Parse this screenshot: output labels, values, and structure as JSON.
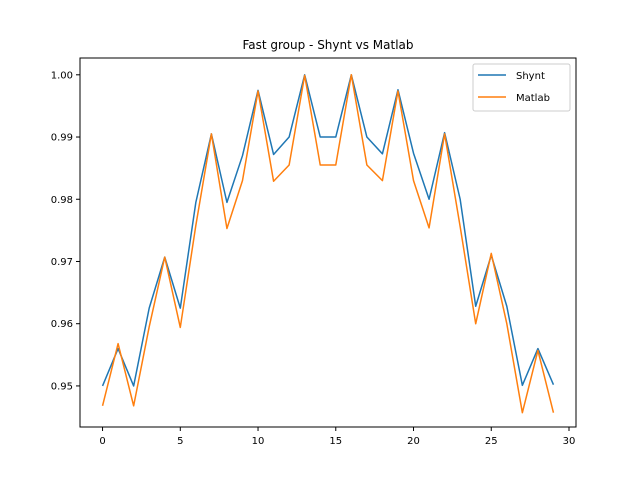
{
  "chart_data": {
    "type": "line",
    "title": "Fast group - Shynt vs Matlab",
    "xlabel": "",
    "ylabel": "",
    "xlim": [
      -1.45,
      30.45
    ],
    "ylim": [
      0.9434,
      1.0027
    ],
    "xticks": [
      0,
      5,
      10,
      15,
      20,
      25,
      30
    ],
    "yticks": [
      0.95,
      0.96,
      0.97,
      0.98,
      0.99,
      1.0
    ],
    "ytick_labels": [
      "0.95",
      "0.96",
      "0.97",
      "0.98",
      "0.99",
      "1.00"
    ],
    "grid": false,
    "legend": "top-right",
    "x": [
      0,
      1,
      2,
      3,
      4,
      5,
      6,
      7,
      8,
      9,
      10,
      11,
      12,
      13,
      14,
      15,
      16,
      17,
      18,
      19,
      20,
      21,
      22,
      23,
      24,
      25,
      26,
      27,
      28,
      29
    ],
    "series": [
      {
        "name": "Shynt",
        "color": "#1f77b4",
        "values": [
          0.95,
          0.956,
          0.95,
          0.9625,
          0.9707,
          0.9625,
          0.9795,
          0.9905,
          0.9795,
          0.987,
          0.9975,
          0.9872,
          0.99,
          1.0,
          0.99,
          0.99,
          1.0,
          0.99,
          0.9873,
          0.9976,
          0.9874,
          0.98,
          0.9907,
          0.98,
          0.9628,
          0.971,
          0.9628,
          0.9501,
          0.956,
          0.9502
        ]
      },
      {
        "name": "Matlab",
        "color": "#ff7f0e",
        "values": [
          0.9468,
          0.9568,
          0.9468,
          0.9595,
          0.9707,
          0.9594,
          0.9758,
          0.9905,
          0.9753,
          0.983,
          0.9974,
          0.9829,
          0.9855,
          0.9999,
          0.9855,
          0.9855,
          1.0,
          0.9855,
          0.983,
          0.9974,
          0.983,
          0.9754,
          0.9905,
          0.9756,
          0.96,
          0.9713,
          0.96,
          0.9457,
          0.9557,
          0.9457
        ]
      }
    ]
  }
}
